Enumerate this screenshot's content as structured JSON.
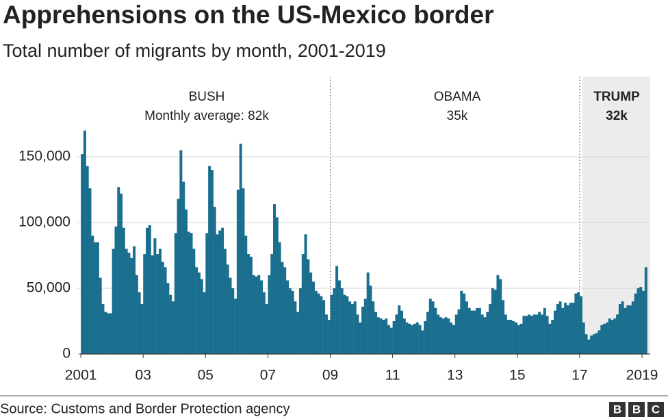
{
  "chart_data": {
    "type": "bar",
    "title": "Apprehensions on the US-Mexico border",
    "subtitle": "Total number of migrants by month, 2001-2019",
    "annotations": [
      "BUSH",
      "Monthly average: 82k",
      "OBAMA",
      "35k",
      "TRUMP",
      "32k"
    ],
    "source": "Source: Customs and Border Protection agency",
    "logo": [
      "B",
      "B",
      "C"
    ],
    "color": "#1a6e8e",
    "grid": true,
    "ylim": [
      0,
      170000
    ],
    "yticks": [
      0,
      {
        "value": 50000,
        "label": "50,000"
      },
      {
        "value": 100000,
        "label": "100,000"
      },
      {
        "value": 150000,
        "label": "150,000"
      }
    ],
    "categories": [
      "2001",
      null,
      null,
      null,
      null,
      null,
      null,
      null,
      null,
      null,
      null,
      null,
      null,
      null,
      null,
      null,
      null,
      null,
      null,
      null,
      null,
      null,
      null,
      null,
      "03",
      null,
      null,
      null,
      null,
      null,
      null,
      null,
      null,
      null,
      null,
      null,
      null,
      null,
      null,
      null,
      null,
      null,
      null,
      null,
      null,
      null,
      null,
      null,
      "05",
      null,
      null,
      null,
      null,
      null,
      null,
      null,
      null,
      null,
      null,
      null,
      null,
      null,
      null,
      null,
      null,
      null,
      null,
      null,
      null,
      null,
      null,
      null,
      "07",
      null,
      null,
      null,
      null,
      null,
      null,
      null,
      null,
      null,
      null,
      null,
      null,
      null,
      null,
      null,
      null,
      null,
      null,
      null,
      null,
      null,
      null,
      null,
      "09",
      null,
      null,
      null,
      null,
      null,
      null,
      null,
      null,
      null,
      null,
      null,
      null,
      null,
      null,
      null,
      null,
      null,
      null,
      null,
      null,
      null,
      null,
      null,
      "11",
      null,
      null,
      null,
      null,
      null,
      null,
      null,
      null,
      null,
      null,
      null,
      null,
      null,
      null,
      null,
      null,
      null,
      null,
      null,
      null,
      null,
      null,
      null,
      "13",
      null,
      null,
      null,
      null,
      null,
      null,
      null,
      null,
      null,
      null,
      null,
      null,
      null,
      null,
      null,
      null,
      null,
      null,
      null,
      null,
      null,
      null,
      null,
      "15",
      null,
      null,
      null,
      null,
      null,
      null,
      null,
      null,
      null,
      null,
      null,
      null,
      null,
      null,
      null,
      null,
      null,
      null,
      null,
      null,
      null,
      null,
      null,
      "17",
      null,
      null,
      null,
      null,
      null,
      null,
      null,
      null,
      null,
      null,
      null,
      null,
      null,
      null,
      null,
      null,
      null,
      null,
      null,
      null,
      null,
      null,
      null,
      "2019",
      null
    ],
    "values": [
      152000,
      170000,
      143000,
      126000,
      90000,
      85000,
      85000,
      58000,
      38000,
      32000,
      31000,
      31000,
      80000,
      97000,
      127000,
      122000,
      96000,
      80000,
      77000,
      73000,
      82000,
      60000,
      47000,
      38000,
      76000,
      96000,
      98000,
      75000,
      88000,
      76000,
      80000,
      70000,
      66000,
      54000,
      45000,
      40000,
      92000,
      118000,
      155000,
      131000,
      110000,
      93000,
      92000,
      80000,
      66000,
      62000,
      57000,
      47000,
      92000,
      143000,
      140000,
      112000,
      91000,
      94000,
      96000,
      80000,
      68000,
      58000,
      50000,
      42000,
      125000,
      160000,
      126000,
      90000,
      76000,
      74000,
      60000,
      59000,
      60000,
      56000,
      47000,
      38000,
      60000,
      76000,
      114000,
      104000,
      85000,
      70000,
      66000,
      56000,
      50000,
      48000,
      40000,
      32000,
      50000,
      76000,
      91000,
      72000,
      62000,
      55000,
      48000,
      46000,
      44000,
      41000,
      30000,
      26000,
      45000,
      50000,
      67000,
      56000,
      50000,
      45000,
      44000,
      40000,
      38000,
      40000,
      30000,
      24000,
      36000,
      42000,
      62000,
      52000,
      40000,
      32000,
      28000,
      27000,
      26000,
      27000,
      22000,
      20000,
      25000,
      30000,
      37000,
      33000,
      27000,
      24000,
      23000,
      22000,
      23000,
      24000,
      22000,
      18000,
      25000,
      32000,
      42000,
      40000,
      35000,
      30000,
      28000,
      27000,
      28000,
      27000,
      24000,
      22000,
      30000,
      34000,
      48000,
      46000,
      40000,
      35000,
      33000,
      33000,
      35000,
      35000,
      30000,
      28000,
      32000,
      38000,
      50000,
      49000,
      60000,
      57000,
      41000,
      30000,
      26000,
      26000,
      25000,
      24000,
      22000,
      23000,
      29000,
      29000,
      30000,
      29000,
      30000,
      30000,
      32000,
      30000,
      35000,
      29000,
      23000,
      26000,
      33000,
      38000,
      40000,
      35000,
      39000,
      37000,
      39000,
      39000,
      46000,
      47000,
      44000,
      24000,
      15000,
      11000,
      14000,
      15000,
      16000,
      18000,
      22000,
      23000,
      24000,
      27000,
      26000,
      27000,
      30000,
      38000,
      40000,
      35000,
      37000,
      37000,
      40000,
      46000,
      50000,
      51000,
      48000,
      66000
    ]
  }
}
